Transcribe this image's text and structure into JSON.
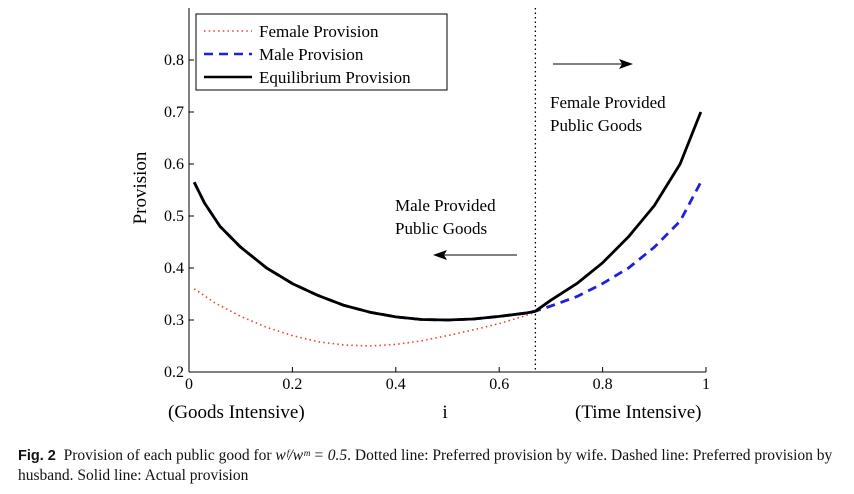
{
  "chart_data": {
    "type": "line",
    "ylabel": "Provision",
    "xlabel": "i",
    "x_left_label": "(Goods Intensive)",
    "x_right_label": "(Time Intensive)",
    "xlim": [
      0,
      1
    ],
    "ylim": [
      0.2,
      0.9
    ],
    "x_ticks": [
      "0",
      "0.2",
      "0.4",
      "0.6",
      "0.8",
      "1"
    ],
    "y_ticks": [
      "0.2",
      "0.3",
      "0.4",
      "0.5",
      "0.6",
      "0.7",
      "0.8"
    ],
    "threshold_x": 0.67,
    "legend_position": "top-left",
    "series": [
      {
        "name": "Female Provision",
        "style": "dotted",
        "color": "#e8412f",
        "x": [
          0.01,
          0.05,
          0.1,
          0.15,
          0.2,
          0.25,
          0.3,
          0.35,
          0.4,
          0.45,
          0.5,
          0.55,
          0.6,
          0.65,
          0.67
        ],
        "y": [
          0.36,
          0.333,
          0.307,
          0.286,
          0.27,
          0.258,
          0.252,
          0.25,
          0.253,
          0.26,
          0.27,
          0.281,
          0.293,
          0.308,
          0.315
        ]
      },
      {
        "name": "Male Provision",
        "style": "dashed",
        "color": "#1f1fe0",
        "x": [
          0.01,
          0.03,
          0.06,
          0.1,
          0.15,
          0.2,
          0.25,
          0.3,
          0.35,
          0.4,
          0.45,
          0.5,
          0.55,
          0.6,
          0.65,
          0.67,
          0.7,
          0.75,
          0.8,
          0.85,
          0.9,
          0.95,
          0.99
        ],
        "y": [
          0.565,
          0.525,
          0.48,
          0.44,
          0.4,
          0.37,
          0.347,
          0.328,
          0.315,
          0.306,
          0.301,
          0.3,
          0.302,
          0.307,
          0.313,
          0.317,
          0.327,
          0.345,
          0.37,
          0.4,
          0.44,
          0.49,
          0.565
        ]
      },
      {
        "name": "Equilibrium Provision",
        "style": "solid",
        "color": "#000000",
        "x": [
          0.01,
          0.03,
          0.06,
          0.1,
          0.15,
          0.2,
          0.25,
          0.3,
          0.35,
          0.4,
          0.45,
          0.5,
          0.55,
          0.6,
          0.65,
          0.67,
          0.7,
          0.75,
          0.8,
          0.85,
          0.9,
          0.95,
          0.99
        ],
        "y": [
          0.565,
          0.525,
          0.48,
          0.44,
          0.4,
          0.37,
          0.347,
          0.328,
          0.315,
          0.306,
          0.301,
          0.3,
          0.302,
          0.307,
          0.313,
          0.317,
          0.338,
          0.37,
          0.41,
          0.46,
          0.52,
          0.6,
          0.7
        ]
      }
    ],
    "annotations": {
      "female_region": [
        "Female Provided",
        "Public Goods"
      ],
      "male_region": [
        "Male Provided",
        "Public Goods"
      ]
    }
  },
  "caption": {
    "label": "Fig. 2",
    "text_before": "Provision of each public good for ",
    "formula": "wᶠ/wᵐ = 0.5",
    "text_after": ". Dotted line: Preferred provision by wife. Dashed line: Preferred provision by husband. Solid line: Actual provision"
  }
}
